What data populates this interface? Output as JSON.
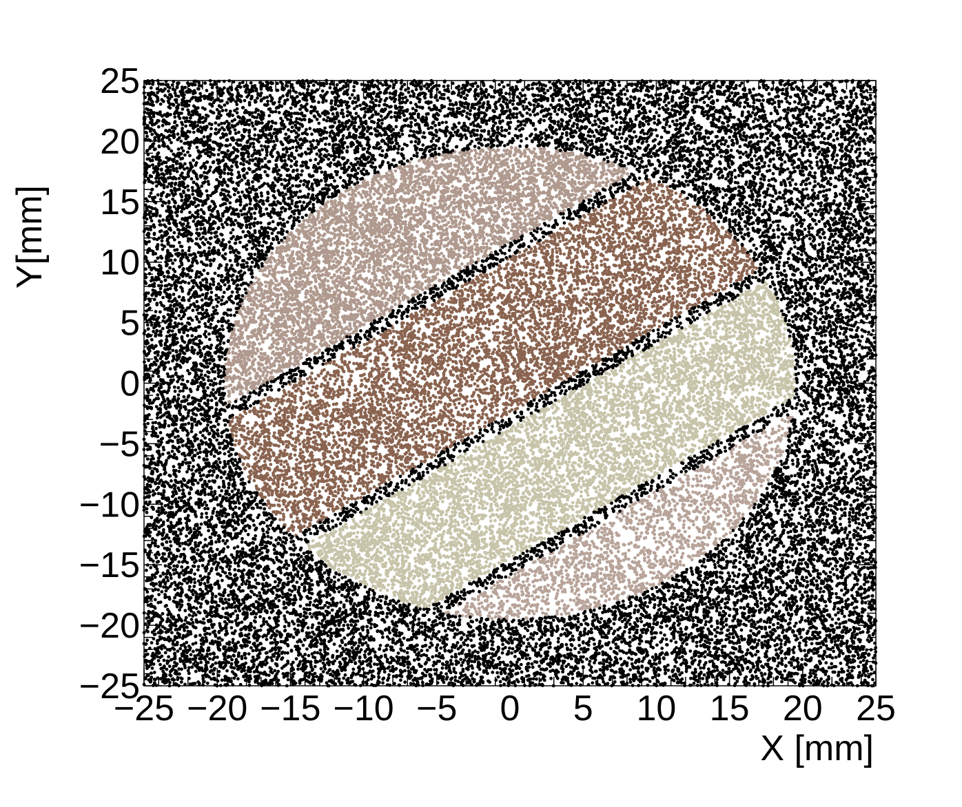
{
  "chart_data": {
    "type": "scatter",
    "title": "",
    "xlabel": "X [mm]",
    "ylabel": "Y[mm]",
    "xlim": [
      -25,
      25
    ],
    "ylim": [
      -25,
      25
    ],
    "xticks": [
      -25,
      -20,
      -15,
      -10,
      -5,
      0,
      5,
      10,
      15,
      20,
      25
    ],
    "yticks": [
      -25,
      -20,
      -15,
      -10,
      -5,
      0,
      5,
      10,
      15,
      20,
      25
    ],
    "xtick_labels": [
      "−25",
      "−20",
      "−15",
      "−10",
      "−5",
      "0",
      "5",
      "10",
      "15",
      "20",
      "25"
    ],
    "ytick_labels": [
      "−25",
      "−20",
      "−15",
      "−10",
      "−5",
      "0",
      "5",
      "10",
      "15",
      "20",
      "25"
    ],
    "grid": false,
    "legend": "none",
    "disk_radius": 19.5,
    "strip_direction": [
      0.57,
      -0.82
    ],
    "strip_offset_bounds": [
      -19.5,
      -9.5,
      -8.5,
      2.0,
      3.0,
      12.0,
      13.0,
      19.5
    ],
    "series": [
      {
        "color": "#000000",
        "region": "outside disk and thin gaps between strips",
        "points": 22000
      },
      {
        "color": "#b09a8f",
        "region": "strip 1 (left)",
        "points": 5500
      },
      {
        "color": "#8a6450",
        "region": "strip 2",
        "points": 7000
      },
      {
        "color": "#c7c4aa",
        "region": "strip 3",
        "points": 6500
      },
      {
        "color": "#b8a49a",
        "region": "strip 4 (right)",
        "points": 1800
      }
    ]
  }
}
